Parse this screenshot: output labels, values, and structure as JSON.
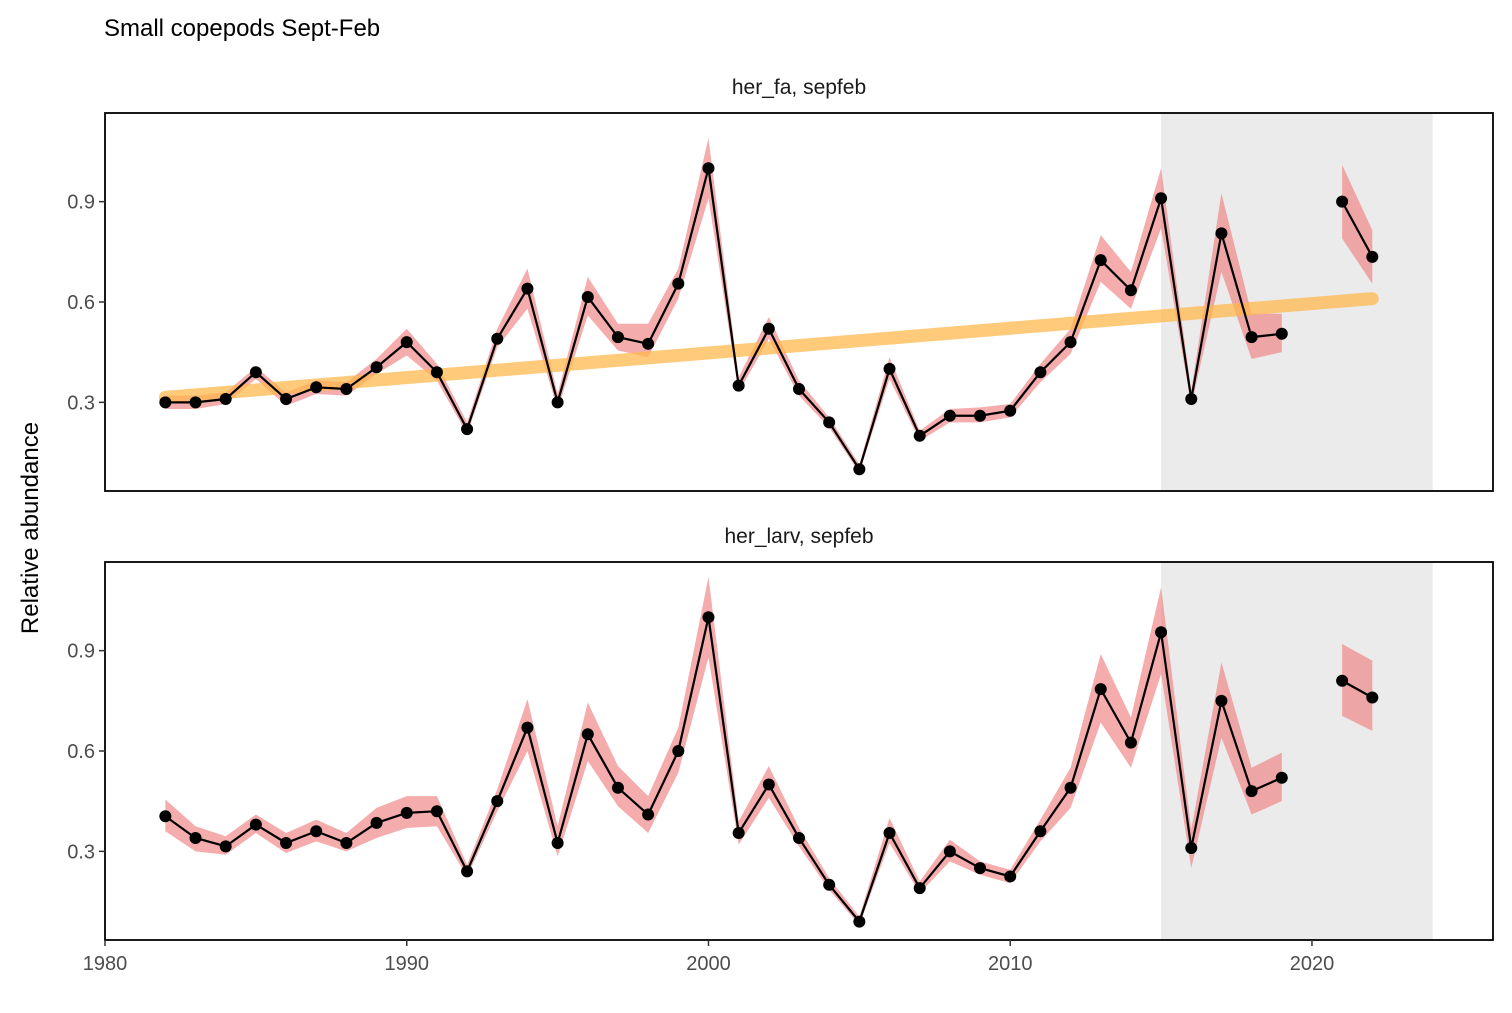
{
  "chart_data": {
    "type": "line",
    "title": "Small copepods Sept-Feb",
    "ylabel": "Relative abundance",
    "xlabel": "",
    "xlim": [
      1980,
      2026
    ],
    "ylim": [
      0.035,
      1.165
    ],
    "x_ticks": [
      1980,
      1990,
      2000,
      2010,
      2020
    ],
    "y_ticks": [
      0.3,
      0.6,
      0.9
    ],
    "shaded_region": {
      "x_start": 2015,
      "x_end": 2024,
      "color": "#ebebeb"
    },
    "colors": {
      "line": "#000000",
      "point": "#000000",
      "ribbon": "#f08080",
      "trend": "#ffb84d",
      "shade": "#ebebeb"
    },
    "grid": false,
    "legend": "none",
    "panels": [
      {
        "label": "her_fa, sepfeb",
        "years": [
          1982,
          1983,
          1984,
          1985,
          1986,
          1987,
          1988,
          1989,
          1990,
          1991,
          1992,
          1993,
          1994,
          1995,
          1996,
          1997,
          1998,
          1999,
          2000,
          2001,
          2002,
          2003,
          2004,
          2005,
          2006,
          2007,
          2008,
          2009,
          2010,
          2011,
          2012,
          2013,
          2014,
          2015,
          2016,
          2017,
          2018,
          2019,
          2020,
          2021,
          2022
        ],
        "values": [
          0.3,
          0.3,
          0.31,
          0.39,
          0.31,
          0.345,
          0.34,
          0.405,
          0.48,
          0.39,
          0.22,
          0.49,
          0.64,
          0.3,
          0.615,
          0.495,
          0.475,
          0.655,
          1.0,
          0.35,
          0.52,
          0.34,
          0.24,
          0.1,
          0.4,
          0.2,
          0.26,
          0.26,
          0.275,
          0.39,
          0.48,
          0.725,
          0.635,
          0.91,
          0.31,
          0.805,
          0.495,
          0.505,
          null,
          0.9,
          0.735
        ],
        "lower": [
          0.28,
          0.28,
          0.295,
          0.37,
          0.29,
          0.325,
          0.32,
          0.385,
          0.44,
          0.365,
          0.205,
          0.465,
          0.58,
          0.28,
          0.56,
          0.455,
          0.435,
          0.61,
          0.91,
          0.33,
          0.49,
          0.32,
          0.225,
          0.09,
          0.37,
          0.185,
          0.24,
          0.24,
          0.255,
          0.36,
          0.445,
          0.66,
          0.58,
          0.82,
          0.29,
          0.69,
          0.43,
          0.45,
          null,
          0.79,
          0.655
        ],
        "upper": [
          0.32,
          0.32,
          0.33,
          0.405,
          0.33,
          0.365,
          0.36,
          0.43,
          0.52,
          0.415,
          0.24,
          0.52,
          0.7,
          0.325,
          0.675,
          0.535,
          0.535,
          0.7,
          1.09,
          0.375,
          0.555,
          0.365,
          0.255,
          0.115,
          0.435,
          0.215,
          0.28,
          0.285,
          0.295,
          0.415,
          0.52,
          0.8,
          0.69,
          1.0,
          0.335,
          0.925,
          0.565,
          0.565,
          null,
          1.01,
          0.815
        ],
        "trend": {
          "x": [
            1982,
            2022
          ],
          "y": [
            0.315,
            0.61
          ]
        }
      },
      {
        "label": "her_larv, sepfeb",
        "years": [
          1982,
          1983,
          1984,
          1985,
          1986,
          1987,
          1988,
          1989,
          1990,
          1991,
          1992,
          1993,
          1994,
          1995,
          1996,
          1997,
          1998,
          1999,
          2000,
          2001,
          2002,
          2003,
          2004,
          2005,
          2006,
          2007,
          2008,
          2009,
          2010,
          2011,
          2012,
          2013,
          2014,
          2015,
          2016,
          2017,
          2018,
          2019,
          2020,
          2021,
          2022
        ],
        "values": [
          0.405,
          0.34,
          0.315,
          0.38,
          0.325,
          0.36,
          0.325,
          0.385,
          0.415,
          0.42,
          0.24,
          0.45,
          0.67,
          0.325,
          0.65,
          0.49,
          0.41,
          0.6,
          1.0,
          0.355,
          0.5,
          0.34,
          0.2,
          0.09,
          0.355,
          0.19,
          0.3,
          0.25,
          0.225,
          0.36,
          0.49,
          0.785,
          0.625,
          0.955,
          0.31,
          0.75,
          0.48,
          0.52,
          null,
          0.81,
          0.76
        ],
        "lower": [
          0.36,
          0.3,
          0.29,
          0.355,
          0.295,
          0.33,
          0.3,
          0.34,
          0.37,
          0.375,
          0.225,
          0.42,
          0.6,
          0.285,
          0.57,
          0.435,
          0.355,
          0.535,
          0.88,
          0.32,
          0.46,
          0.315,
          0.185,
          0.08,
          0.325,
          0.175,
          0.27,
          0.23,
          0.205,
          0.33,
          0.43,
          0.685,
          0.55,
          0.83,
          0.25,
          0.64,
          0.41,
          0.45,
          null,
          0.705,
          0.66
        ],
        "upper": [
          0.455,
          0.375,
          0.345,
          0.41,
          0.355,
          0.395,
          0.355,
          0.43,
          0.465,
          0.465,
          0.26,
          0.485,
          0.755,
          0.375,
          0.745,
          0.555,
          0.465,
          0.67,
          1.12,
          0.39,
          0.555,
          0.37,
          0.22,
          0.105,
          0.4,
          0.21,
          0.335,
          0.27,
          0.245,
          0.395,
          0.55,
          0.89,
          0.7,
          1.09,
          0.365,
          0.865,
          0.55,
          0.595,
          null,
          0.92,
          0.87
        ]
      }
    ]
  }
}
